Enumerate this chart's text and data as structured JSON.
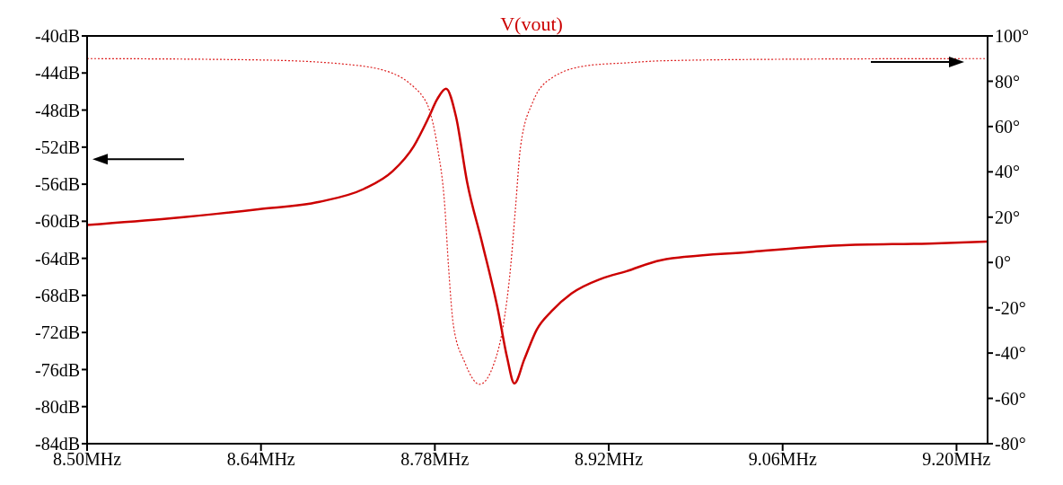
{
  "chart_data": {
    "type": "line",
    "title": "V(vout)",
    "xlim": [
      8.5,
      9.225
    ],
    "xticks": [
      {
        "value": 8.5,
        "label": "8.50MHz"
      },
      {
        "value": 8.64,
        "label": "8.64MHz"
      },
      {
        "value": 8.78,
        "label": "8.78MHz"
      },
      {
        "value": 8.92,
        "label": "8.92MHz"
      },
      {
        "value": 9.06,
        "label": "9.06MHz"
      },
      {
        "value": 9.2,
        "label": "9.20MHz"
      }
    ],
    "ylim": [
      -84,
      -40
    ],
    "yticks": [
      {
        "value": -40,
        "label": "-40dB"
      },
      {
        "value": -44,
        "label": "-44dB"
      },
      {
        "value": -48,
        "label": "-48dB"
      },
      {
        "value": -52,
        "label": "-52dB"
      },
      {
        "value": -56,
        "label": "-56dB"
      },
      {
        "value": -60,
        "label": "-60dB"
      },
      {
        "value": -64,
        "label": "-64dB"
      },
      {
        "value": -68,
        "label": "-68dB"
      },
      {
        "value": -72,
        "label": "-72dB"
      },
      {
        "value": -76,
        "label": "-76dB"
      },
      {
        "value": -80,
        "label": "-80dB"
      },
      {
        "value": -84,
        "label": "-84dB"
      }
    ],
    "y2lim": [
      -80,
      100
    ],
    "y2ticks": [
      {
        "value": 100,
        "label": "100°"
      },
      {
        "value": 80,
        "label": "80°"
      },
      {
        "value": 60,
        "label": "60°"
      },
      {
        "value": 40,
        "label": "40°"
      },
      {
        "value": 20,
        "label": "20°"
      },
      {
        "value": 0,
        "label": "0°"
      },
      {
        "value": -20,
        "label": "-20°"
      },
      {
        "value": -40,
        "label": "-40°"
      },
      {
        "value": -60,
        "label": "-60°"
      },
      {
        "value": -80,
        "label": "-80°"
      }
    ],
    "marker": "none",
    "series": [
      {
        "color": "#cc0000",
        "line_style": "solid",
        "x": [
          8.5,
          8.566,
          8.638,
          8.687,
          8.723,
          8.746,
          8.763,
          8.775,
          8.782,
          8.789,
          8.797,
          8.806,
          8.818,
          8.831,
          8.838,
          8.844,
          8.852,
          8.862,
          8.874,
          8.89,
          8.914,
          8.934,
          8.962,
          9.034,
          9.106,
          9.178,
          9.225
        ],
        "values": [
          -60.4,
          -59.7,
          -58.7,
          -57.9,
          -56.5,
          -54.6,
          -51.9,
          -48.8,
          -46.8,
          -45.7,
          -48.7,
          -55.8,
          -62.3,
          -69.7,
          -74.6,
          -77.5,
          -74.9,
          -71.7,
          -69.7,
          -67.8,
          -66.2,
          -65.4,
          -64.2,
          -63.3,
          -62.6,
          -62.4,
          -62.2
        ]
      },
      {
        "color": "#dd2222",
        "line_style": "dotted",
        "axis": "y2",
        "x": [
          8.5,
          8.638,
          8.71,
          8.746,
          8.763,
          8.77,
          8.775,
          8.782,
          8.788,
          8.791,
          8.795,
          8.804,
          8.816,
          8.828,
          8.835,
          8.841,
          8.845,
          8.849,
          8.859,
          8.874,
          8.903,
          8.934,
          8.962,
          9.058,
          9.225
        ],
        "values": [
          90,
          89.4,
          87.4,
          83.5,
          77.5,
          73.4,
          68.3,
          51.2,
          24.7,
          -1.9,
          -28,
          -44,
          -53.8,
          -44,
          -28,
          -1.9,
          24.7,
          51.2,
          71,
          81.4,
          86.9,
          88.1,
          89,
          89.7,
          90
        ]
      }
    ]
  }
}
